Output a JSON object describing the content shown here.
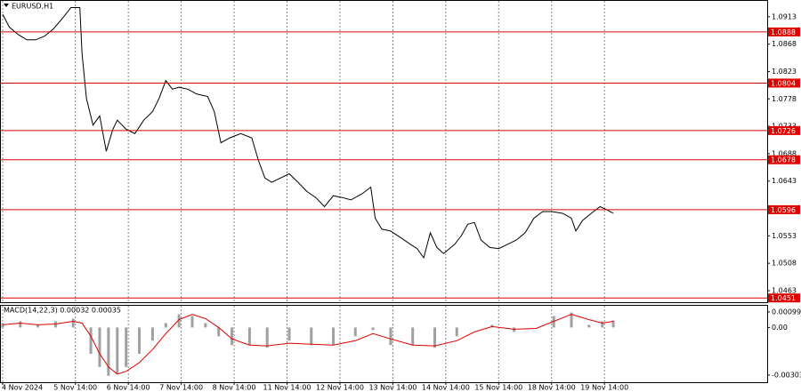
{
  "chart_data": [
    {
      "type": "line",
      "title": "EURUSD,H1",
      "color": "#000000",
      "grid": true,
      "x": [
        0,
        3,
        7,
        11,
        15,
        19,
        23,
        27,
        31,
        35,
        36,
        38,
        41,
        44,
        47,
        50,
        52,
        56,
        60,
        64,
        68,
        71,
        74,
        77,
        80,
        84,
        88,
        93,
        96,
        99,
        103,
        108,
        113,
        116,
        119,
        122,
        126,
        130,
        134,
        138,
        142,
        146,
        150,
        154,
        158,
        163,
        167,
        169,
        172,
        176,
        181,
        185,
        188,
        191,
        194,
        197,
        200,
        205,
        208,
        211,
        214,
        217,
        221,
        225,
        229,
        233,
        237,
        241,
        245,
        249,
        254,
        258,
        260,
        263,
        267,
        271,
        274,
        277
      ],
      "values": [
        1.0917,
        1.0896,
        1.0884,
        1.0875,
        1.0875,
        1.0881,
        1.0893,
        1.091,
        1.0928,
        1.0928,
        1.0852,
        1.0779,
        1.0735,
        1.075,
        1.0692,
        1.0728,
        1.0743,
        1.0728,
        1.0721,
        1.0743,
        1.0757,
        1.0779,
        1.0808,
        1.0794,
        1.0797,
        1.0794,
        1.0786,
        1.0782,
        1.0757,
        1.0706,
        1.0714,
        1.0721,
        1.0714,
        1.0677,
        1.0648,
        1.0641,
        1.0648,
        1.0655,
        1.0641,
        1.0626,
        1.0616,
        1.0601,
        1.0619,
        1.0616,
        1.0612,
        1.0622,
        1.0633,
        1.0582,
        1.0564,
        1.0561,
        1.0549,
        1.0539,
        1.0532,
        1.0517,
        1.0558,
        1.0534,
        1.0524,
        1.0539,
        1.0553,
        1.0572,
        1.0575,
        1.0546,
        1.0534,
        1.0532,
        1.0539,
        1.0546,
        1.0558,
        1.0582,
        1.0593,
        1.0593,
        1.059,
        1.0582,
        1.0561,
        1.0578,
        1.059,
        1.0601,
        1.0596,
        1.059
      ],
      "xlim": [
        -0.8,
        346.8
      ],
      "xticks": [
        {
          "value": 0,
          "label": "4 Nov 2024"
        },
        {
          "value": 33,
          "label": "5 Nov 14:00"
        },
        {
          "value": 57,
          "label": "6 Nov 14:00"
        },
        {
          "value": 81,
          "label": "7 Nov 14:00"
        },
        {
          "value": 105,
          "label": "8 Nov 14:00"
        },
        {
          "value": 129,
          "label": "11 Nov 14:00"
        },
        {
          "value": 153,
          "label": "12 Nov 14:00"
        },
        {
          "value": 177,
          "label": "13 Nov 14:00"
        },
        {
          "value": 201,
          "label": "14 Nov 14:00"
        },
        {
          "value": 225,
          "label": "15 Nov 14:00"
        },
        {
          "value": 249,
          "label": "18 Nov 14:00"
        },
        {
          "value": 273,
          "label": "19 Nov 14:00"
        }
      ],
      "ylim": [
        1.0444,
        1.0939
      ],
      "yticks": [
        1.0463,
        1.0508,
        1.0553,
        1.0598,
        1.0643,
        1.0688,
        1.0733,
        1.0778,
        1.0823,
        1.0868,
        1.0913
      ],
      "levels": [
        1.0888,
        1.0804,
        1.0726,
        1.0678,
        1.0596,
        1.0451
      ],
      "level_color": "#e00000"
    },
    {
      "type": "macd",
      "title": "MACD(14,22,3) 0.00032 0.00035",
      "x": [
        0,
        8,
        16,
        24,
        32,
        36,
        40,
        44,
        48,
        52,
        56,
        62,
        68,
        74,
        80,
        86,
        92,
        98,
        104,
        112,
        120,
        130,
        140,
        150,
        160,
        168,
        176,
        186,
        196,
        206,
        214,
        222,
        232,
        242,
        250,
        258,
        266,
        272,
        277
      ],
      "xlim": [
        -0.8,
        346.8
      ],
      "ylim": [
        -0.00348,
        0.00138
      ],
      "yticks": [
        -0.00303,
        {
          "value": 0,
          "label": "0.00"
        },
        0.00099
      ],
      "series": [
        {
          "name": "MACD",
          "color": "#a0a0a0",
          "values": [
            0.00028,
            0.00039,
            0.00017,
            0.00039,
            0.00056,
            0,
            -0.00167,
            -0.00251,
            -0.00307,
            -0.00296,
            -0.00251,
            -0.00167,
            -0.00084,
            0.00028,
            0.00084,
            0.00073,
            0.00028,
            -0.00056,
            -0.00112,
            -0.00112,
            -0.00128,
            -0.00084,
            -0.00112,
            -0.00112,
            -0.00056,
            -0.00017,
            -0.00112,
            -0.00112,
            -0.00128,
            -0.00056,
            0,
            0.00017,
            -0.00028,
            0,
            0.00073,
            0.00095,
            0.00017,
            0.00039,
            0.00045
          ]
        },
        {
          "name": "Signal",
          "color": "#e00000",
          "values": [
            0.00017,
            0.00028,
            0.00017,
            0.00022,
            0.00039,
            0.00028,
            -0.00056,
            -0.00167,
            -0.00251,
            -0.00296,
            -0.00279,
            -0.00223,
            -0.0014,
            -0.00039,
            0.0005,
            0.00084,
            0.00056,
            0,
            -0.00073,
            -0.00112,
            -0.00117,
            -0.001,
            -0.00106,
            -0.00112,
            -0.00084,
            -0.00039,
            -0.00073,
            -0.00112,
            -0.00117,
            -0.00084,
            -0.00028,
            6e-05,
            -0.00011,
            -6e-05,
            0.00039,
            0.00084,
            0.0005,
            0.00028,
            0.00039
          ]
        }
      ]
    }
  ]
}
